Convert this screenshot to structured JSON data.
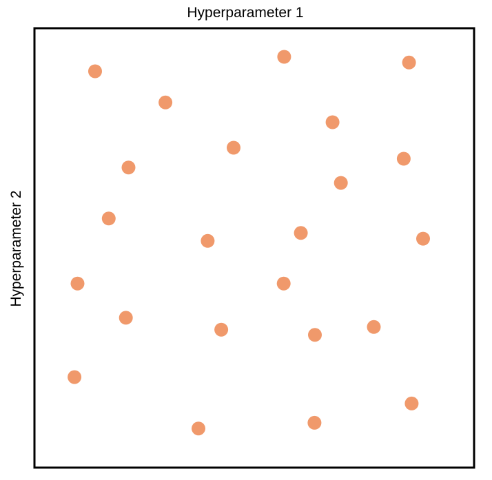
{
  "chart_data": {
    "type": "scatter",
    "title": "",
    "xlabel": "Hyperparameter 1",
    "ylabel": "Hyperparameter 2",
    "xlim": [
      0,
      1
    ],
    "ylim": [
      0,
      1
    ],
    "grid": false,
    "ticks": false,
    "marker_color": "#F0996B",
    "series": [
      {
        "points": [
          {
            "x": 0.138,
            "y": 0.902
          },
          {
            "x": 0.298,
            "y": 0.831
          },
          {
            "x": 0.568,
            "y": 0.935
          },
          {
            "x": 0.852,
            "y": 0.922
          },
          {
            "x": 0.678,
            "y": 0.786
          },
          {
            "x": 0.453,
            "y": 0.728
          },
          {
            "x": 0.84,
            "y": 0.703
          },
          {
            "x": 0.214,
            "y": 0.683
          },
          {
            "x": 0.697,
            "y": 0.648
          },
          {
            "x": 0.169,
            "y": 0.567
          },
          {
            "x": 0.394,
            "y": 0.516
          },
          {
            "x": 0.606,
            "y": 0.534
          },
          {
            "x": 0.884,
            "y": 0.521
          },
          {
            "x": 0.098,
            "y": 0.419
          },
          {
            "x": 0.567,
            "y": 0.419
          },
          {
            "x": 0.208,
            "y": 0.341
          },
          {
            "x": 0.425,
            "y": 0.314
          },
          {
            "x": 0.638,
            "y": 0.302
          },
          {
            "x": 0.772,
            "y": 0.32
          },
          {
            "x": 0.091,
            "y": 0.206
          },
          {
            "x": 0.858,
            "y": 0.146
          },
          {
            "x": 0.373,
            "y": 0.089
          },
          {
            "x": 0.637,
            "y": 0.102
          }
        ]
      }
    ]
  }
}
